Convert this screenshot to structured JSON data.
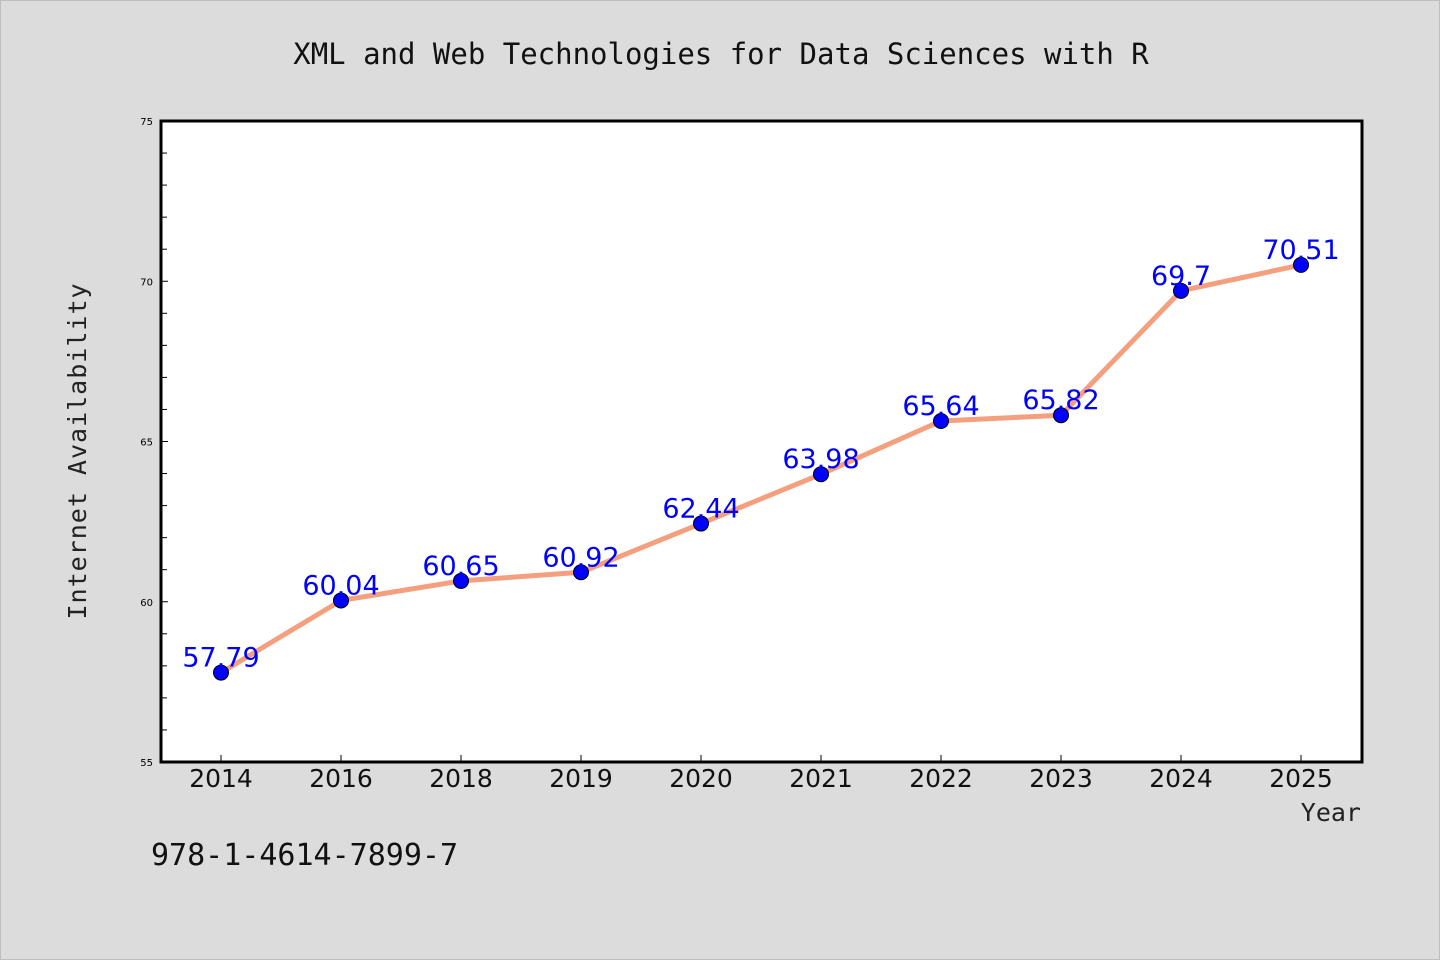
{
  "chart_data": {
    "type": "line",
    "title": "XML and Web Technologies for Data Sciences with R",
    "xlabel": "Year",
    "ylabel": "Internet Availability",
    "categories": [
      "2014",
      "2016",
      "2018",
      "2019",
      "2020",
      "2021",
      "2022",
      "2023",
      "2024",
      "2025"
    ],
    "series": [
      {
        "values": [
          57.79,
          60.04,
          60.65,
          60.92,
          62.44,
          63.98,
          65.64,
          65.82,
          69.7,
          70.51
        ],
        "line_color": "#f4a07e",
        "marker_color": "#0000ff"
      }
    ],
    "data_labels": [
      "57.79",
      "60.04",
      "60.65",
      "60.92",
      "62.44",
      "63.98",
      "65.64",
      "65.82",
      "69.7",
      "70.51"
    ],
    "ylim": [
      55,
      75
    ],
    "yticks": [
      "55",
      "60",
      "65",
      "70",
      "75"
    ],
    "grid": false,
    "label_color": "#0000ff"
  },
  "footer": {
    "isbn": "978-1-4614-7899-7"
  }
}
